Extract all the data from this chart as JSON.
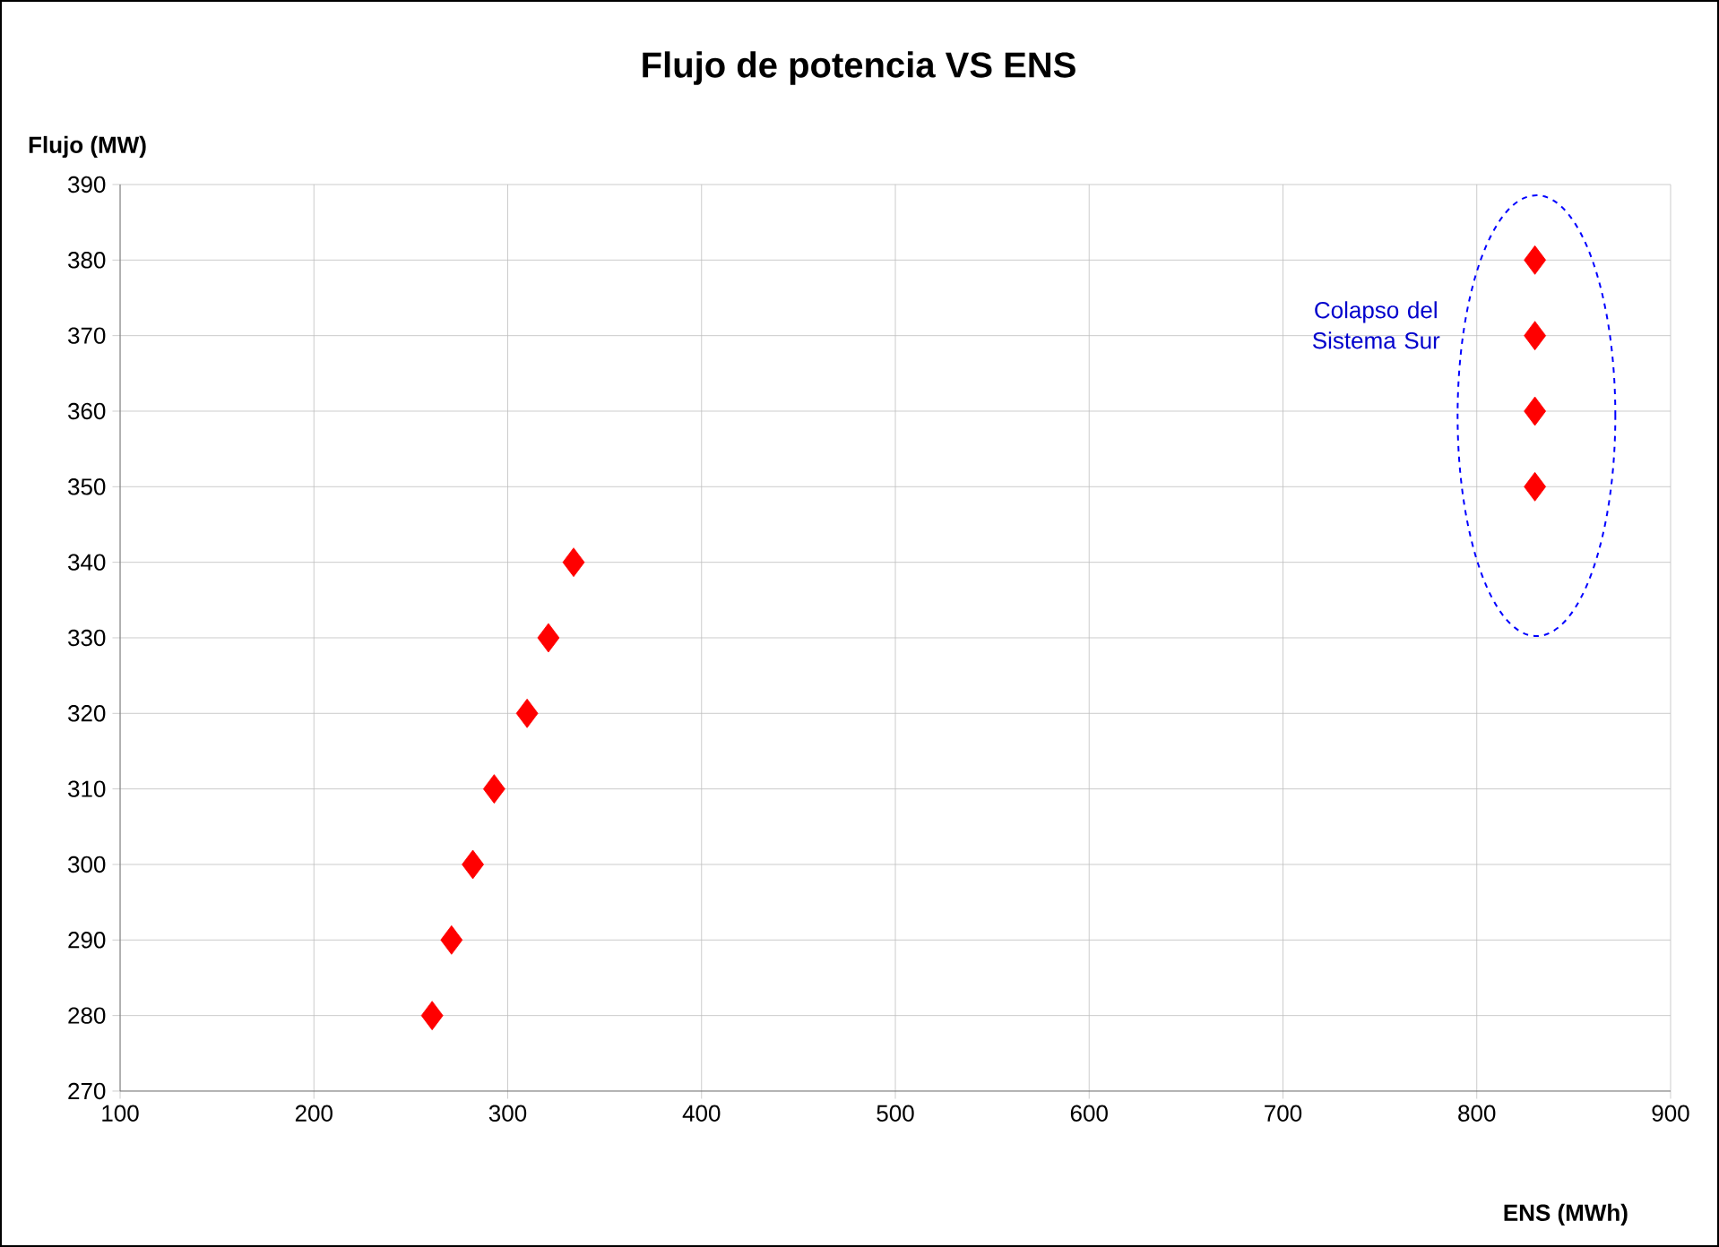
{
  "chart_data": {
    "type": "scatter",
    "title": "Flujo de potencia  VS  ENS",
    "xlabel": "ENS (MWh)",
    "ylabel": "Flujo (MW)",
    "x": [
      261,
      271,
      282,
      293,
      310,
      321,
      334,
      830,
      830,
      830,
      830
    ],
    "series": [
      {
        "color": "#ff0000",
        "values": [
          280,
          290,
          300,
          310,
          320,
          330,
          340,
          350,
          360,
          370,
          380
        ]
      }
    ],
    "marker": "diamond",
    "grid": true,
    "xlim": [
      100,
      900
    ],
    "xticks": [
      100,
      200,
      300,
      400,
      500,
      600,
      700,
      800,
      900
    ],
    "ylim": [
      270,
      390
    ],
    "yticks": [
      270,
      280,
      290,
      300,
      310,
      320,
      330,
      340,
      350,
      360,
      370,
      380,
      390
    ],
    "annotations": [
      "Colapso del Sistema Sur"
    ]
  }
}
